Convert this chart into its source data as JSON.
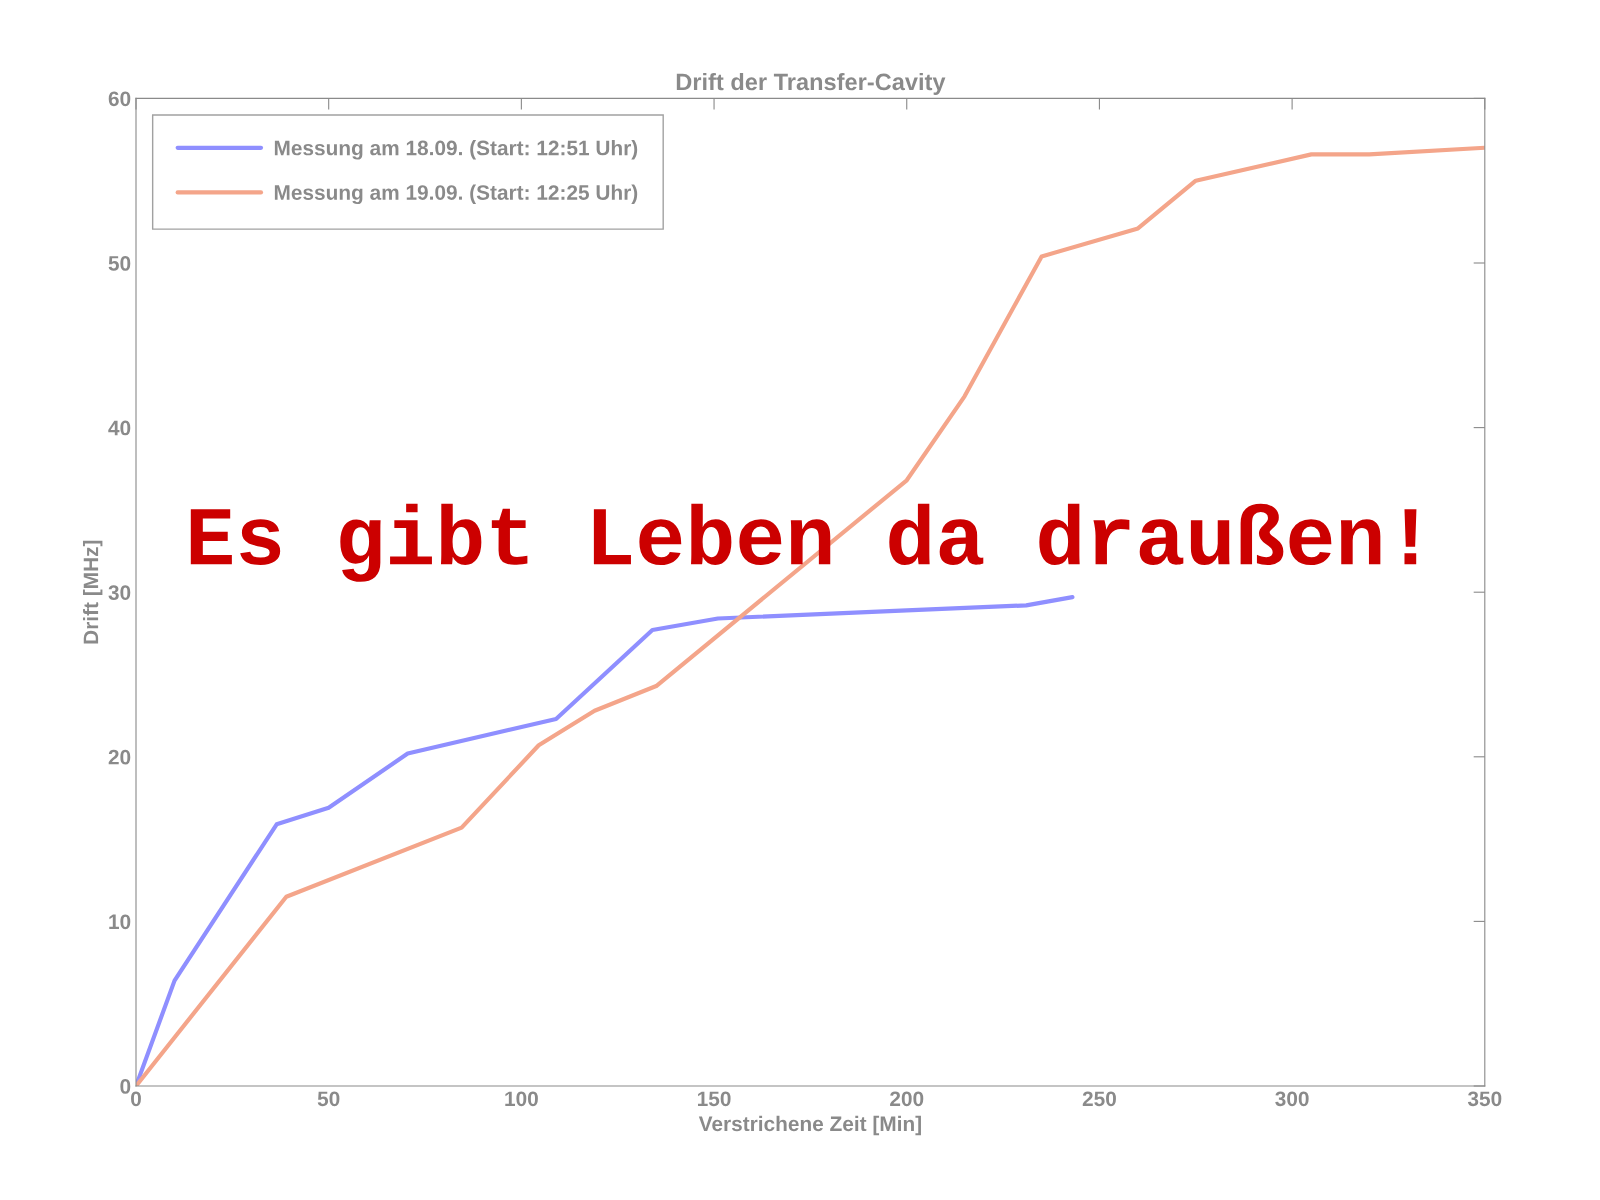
{
  "chart_data": {
    "type": "line",
    "title": "Drift der Transfer-Cavity",
    "xlabel": "Verstrichene Zeit [Min]",
    "ylabel": "Drift [MHz]",
    "xlim": [
      0,
      350
    ],
    "xticks": [
      0,
      50,
      100,
      150,
      200,
      250,
      300,
      350
    ],
    "ylim": [
      0,
      60
    ],
    "yticks": [
      0,
      10,
      20,
      30,
      40,
      50,
      60
    ],
    "grid": false,
    "legend": "top left",
    "line_style": "solid",
    "annotations": [
      "Es gibt Leben da draußen!"
    ],
    "series": [
      {
        "name": "Messung am 18.09. (Start: 12:51 Uhr)",
        "color": "#8f8fff",
        "x": [
          0,
          10,
          36.5,
          50,
          70.5,
          109,
          134,
          151,
          200,
          231,
          243
        ],
        "values": [
          0,
          6.4,
          15.9,
          16.9,
          20.2,
          22.3,
          27.7,
          28.4,
          28.9,
          29.2,
          29.7
        ]
      },
      {
        "name": "Messung am 19.09. (Start: 12:25 Uhr)",
        "color": "#f4a58a",
        "x": [
          0,
          39,
          84.5,
          104.5,
          119,
          135,
          200,
          215,
          235,
          260,
          275,
          305,
          320,
          350
        ],
        "values": [
          0,
          11.5,
          15.7,
          20.7,
          22.8,
          24.3,
          36.8,
          41.9,
          50.4,
          52.1,
          55.0,
          56.6,
          56.6,
          57.0
        ]
      }
    ]
  }
}
